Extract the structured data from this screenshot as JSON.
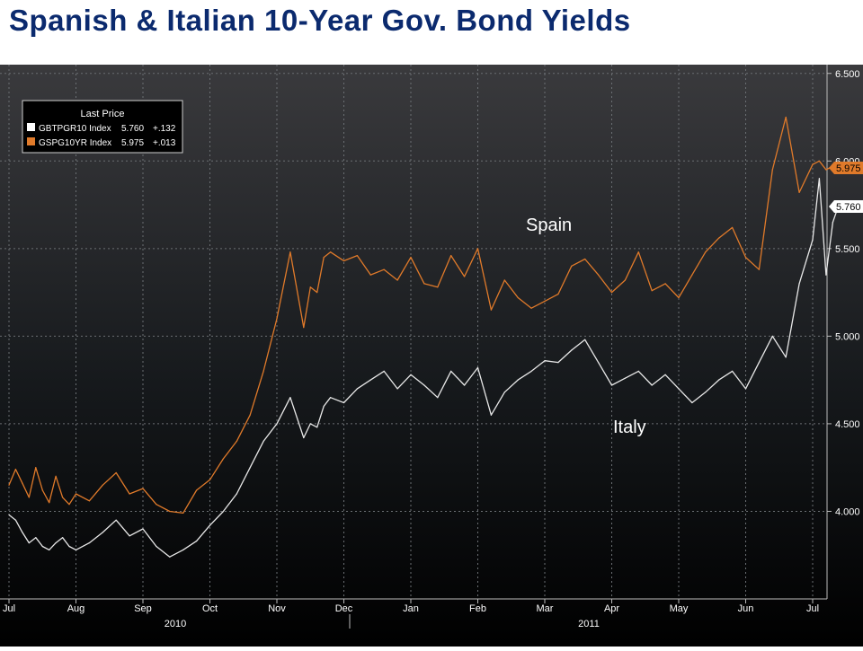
{
  "title": "Spanish & Italian 10-Year Gov. Bond Yields",
  "chart_data": {
    "type": "line",
    "x_ticks": [
      "Jul",
      "Aug",
      "Sep",
      "Oct",
      "Nov",
      "Dec",
      "Jan",
      "Feb",
      "Mar",
      "Apr",
      "May",
      "Jun",
      "Jul"
    ],
    "x_years": [
      "2010",
      "2011"
    ],
    "y_ticks": [
      "6.500",
      "6.000",
      "5.500",
      "5.000",
      "4.500",
      "4.000"
    ],
    "ylim": [
      3.5,
      6.55
    ],
    "legend": {
      "header": "Last Price",
      "entries": [
        {
          "name": "GBTPGR10 Index",
          "last": "5.760",
          "change": "+.132",
          "color": "#ffffff"
        },
        {
          "name": "GSPG10YR Index",
          "last": "5.975",
          "change": "+.013",
          "color": "#e07a2a"
        }
      ]
    },
    "annotations": {
      "spain": "Spain",
      "italy": "Italy"
    },
    "last_labels": {
      "spain": "5.975",
      "italy": "5.760"
    },
    "series": [
      {
        "name": "GSPG10YR Index",
        "color": "#e07a2a",
        "x": [
          0.0,
          0.1,
          0.2,
          0.3,
          0.4,
          0.5,
          0.6,
          0.7,
          0.8,
          0.9,
          1.0,
          1.2,
          1.4,
          1.6,
          1.8,
          2.0,
          2.2,
          2.4,
          2.6,
          2.8,
          3.0,
          3.2,
          3.4,
          3.6,
          3.8,
          4.0,
          4.2,
          4.4,
          4.5,
          4.6,
          4.7,
          4.8,
          5.0,
          5.2,
          5.4,
          5.6,
          5.8,
          6.0,
          6.2,
          6.4,
          6.6,
          6.8,
          7.0,
          7.2,
          7.4,
          7.6,
          7.8,
          8.0,
          8.2,
          8.4,
          8.6,
          8.8,
          9.0,
          9.2,
          9.4,
          9.6,
          9.8,
          10.0,
          10.2,
          10.4,
          10.6,
          10.8,
          11.0,
          11.2,
          11.4,
          11.6,
          11.8,
          12.0,
          12.1,
          12.2,
          12.3,
          12.4
        ],
        "y": [
          4.15,
          4.24,
          4.16,
          4.08,
          4.25,
          4.12,
          4.05,
          4.2,
          4.08,
          4.04,
          4.1,
          4.06,
          4.15,
          4.22,
          4.1,
          4.13,
          4.04,
          4.0,
          3.99,
          4.12,
          4.18,
          4.3,
          4.4,
          4.55,
          4.8,
          5.1,
          5.48,
          5.05,
          5.28,
          5.25,
          5.45,
          5.48,
          5.43,
          5.46,
          5.35,
          5.38,
          5.32,
          5.45,
          5.3,
          5.28,
          5.46,
          5.34,
          5.5,
          5.15,
          5.32,
          5.22,
          5.16,
          5.2,
          5.24,
          5.4,
          5.44,
          5.35,
          5.25,
          5.32,
          5.48,
          5.26,
          5.3,
          5.22,
          5.35,
          5.48,
          5.56,
          5.62,
          5.45,
          5.38,
          5.95,
          6.25,
          5.82,
          5.98,
          6.0,
          5.95,
          5.97,
          5.975
        ]
      },
      {
        "name": "GBTPGR10 Index",
        "color": "#e8e8e8",
        "x": [
          0.0,
          0.1,
          0.2,
          0.3,
          0.4,
          0.5,
          0.6,
          0.7,
          0.8,
          0.9,
          1.0,
          1.2,
          1.4,
          1.6,
          1.8,
          2.0,
          2.2,
          2.4,
          2.6,
          2.8,
          3.0,
          3.2,
          3.4,
          3.6,
          3.8,
          4.0,
          4.2,
          4.4,
          4.5,
          4.6,
          4.7,
          4.8,
          5.0,
          5.2,
          5.4,
          5.6,
          5.8,
          6.0,
          6.2,
          6.4,
          6.6,
          6.8,
          7.0,
          7.2,
          7.4,
          7.6,
          7.8,
          8.0,
          8.2,
          8.4,
          8.6,
          8.8,
          9.0,
          9.2,
          9.4,
          9.6,
          9.8,
          10.0,
          10.2,
          10.4,
          10.6,
          10.8,
          11.0,
          11.2,
          11.4,
          11.6,
          11.8,
          12.0,
          12.1,
          12.2,
          12.3,
          12.4
        ],
        "y": [
          3.98,
          3.95,
          3.88,
          3.82,
          3.85,
          3.8,
          3.78,
          3.82,
          3.85,
          3.8,
          3.78,
          3.82,
          3.88,
          3.95,
          3.86,
          3.9,
          3.8,
          3.74,
          3.78,
          3.83,
          3.92,
          4.0,
          4.1,
          4.25,
          4.4,
          4.5,
          4.65,
          4.42,
          4.5,
          4.48,
          4.6,
          4.65,
          4.62,
          4.7,
          4.75,
          4.8,
          4.7,
          4.78,
          4.72,
          4.65,
          4.8,
          4.72,
          4.82,
          4.55,
          4.68,
          4.75,
          4.8,
          4.86,
          4.85,
          4.92,
          4.98,
          4.85,
          4.72,
          4.76,
          4.8,
          4.72,
          4.78,
          4.7,
          4.62,
          4.68,
          4.75,
          4.8,
          4.7,
          4.85,
          5.0,
          4.88,
          5.3,
          5.55,
          5.9,
          5.35,
          5.65,
          5.76
        ]
      }
    ]
  }
}
